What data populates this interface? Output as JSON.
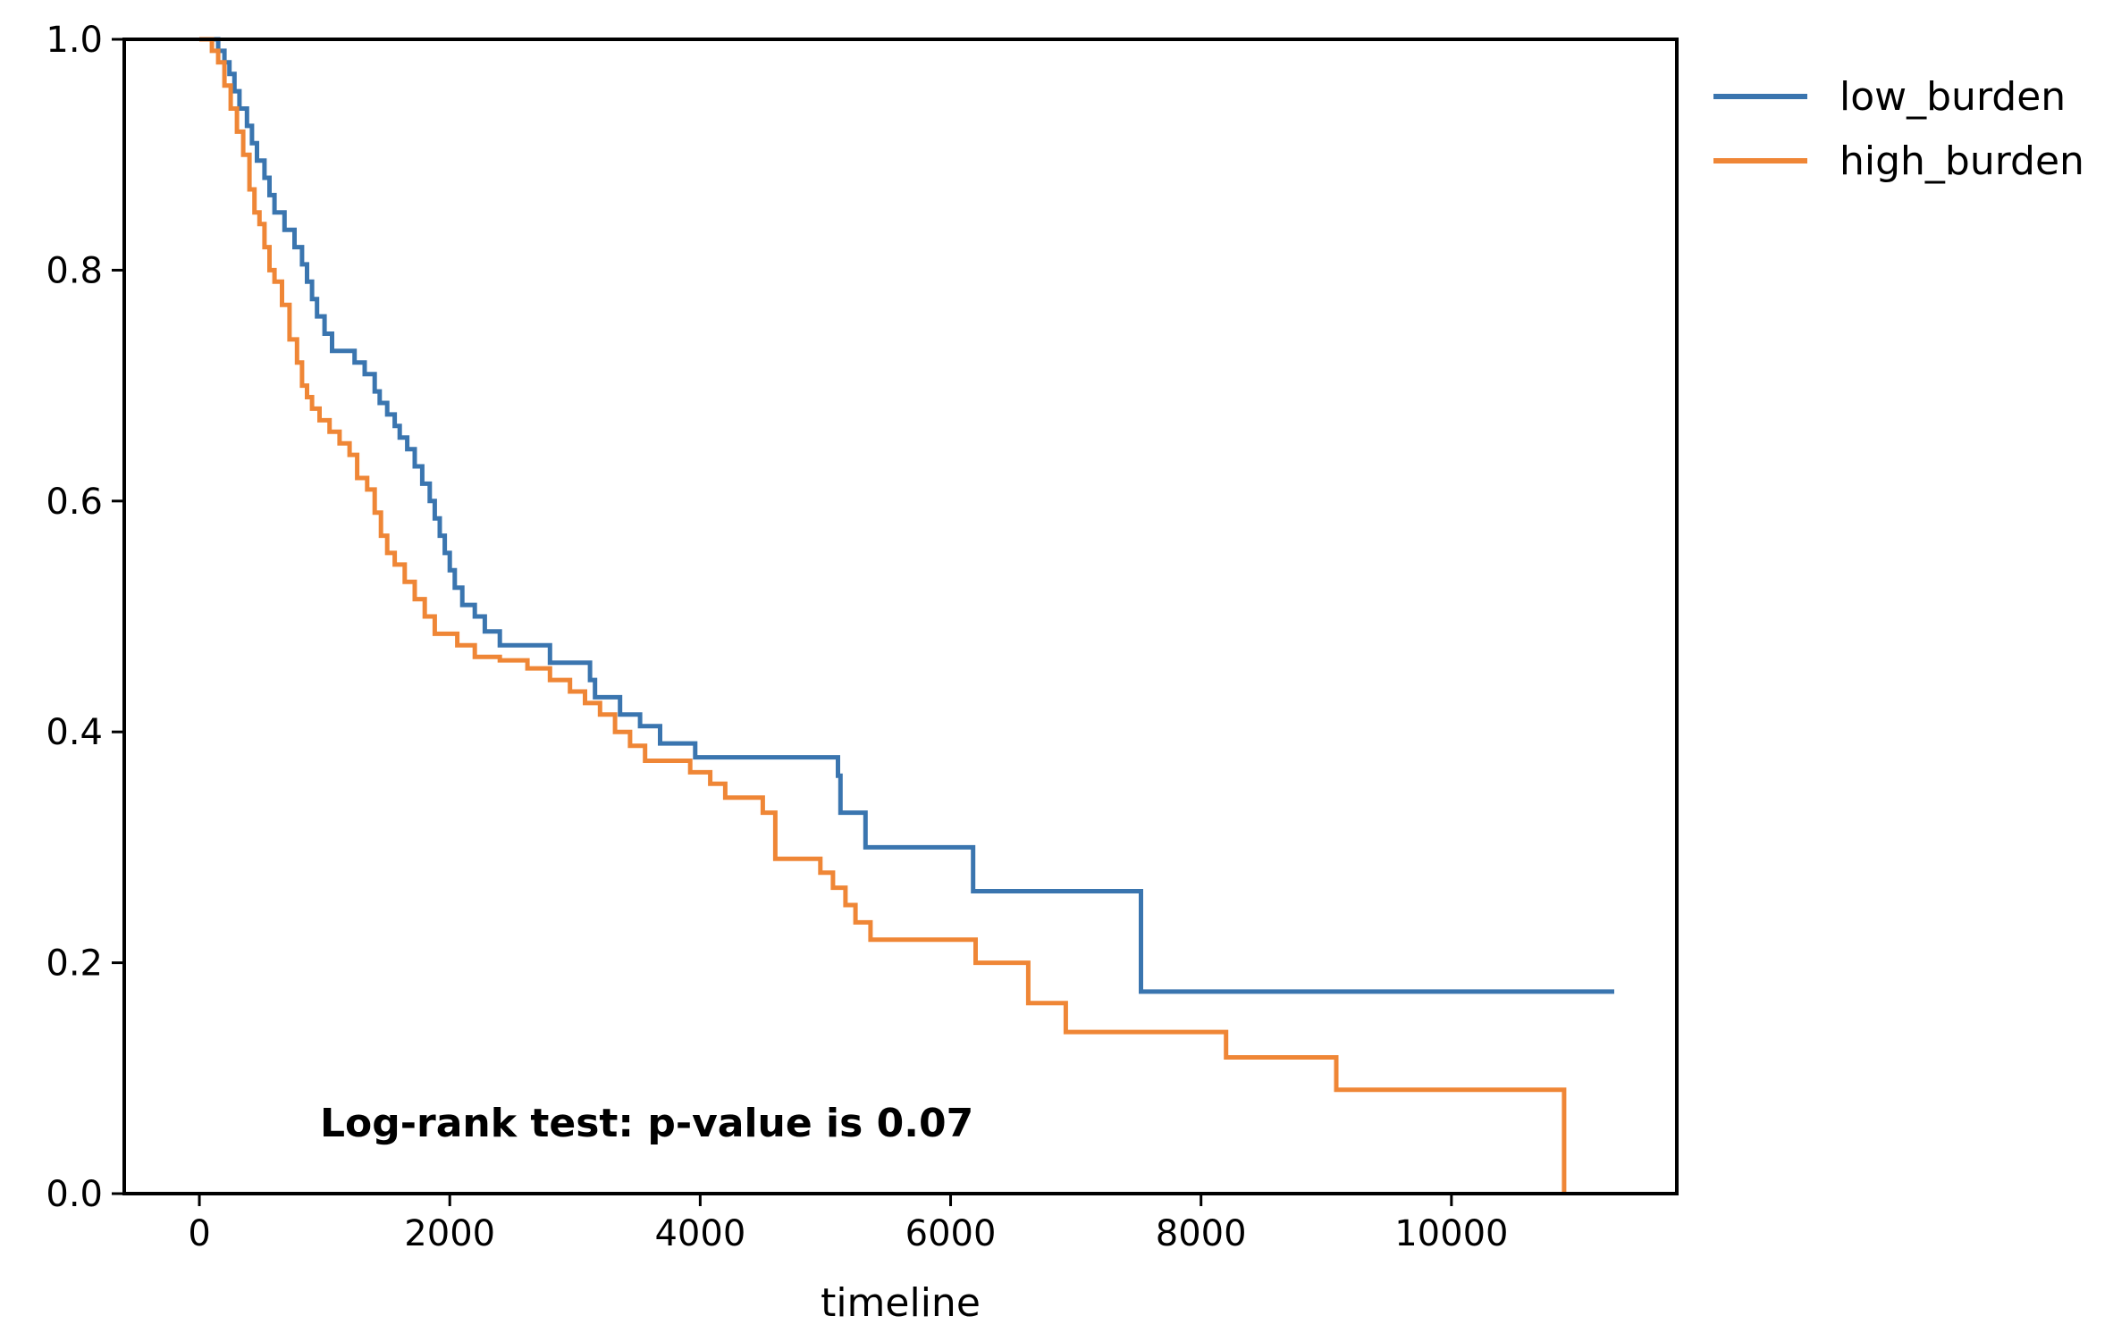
{
  "chart_data": {
    "type": "line",
    "xlabel": "timeline",
    "ylabel": "",
    "xlim": [
      -600,
      11800
    ],
    "ylim": [
      0,
      1.0
    ],
    "x_ticks": [
      0,
      2000,
      4000,
      6000,
      8000,
      10000
    ],
    "x_tick_labels": [
      "0",
      "2000",
      "4000",
      "6000",
      "8000",
      "10000"
    ],
    "y_ticks": [
      0.0,
      0.2,
      0.4,
      0.6,
      0.8,
      1.0
    ],
    "y_tick_labels": [
      "0.0",
      "0.2",
      "0.4",
      "0.6",
      "0.8",
      "1.0"
    ],
    "grid": false,
    "legend_position": "outside-top-right",
    "annotation": "Log-rank test: p-value is 0.07",
    "series": [
      {
        "name": "low_burden",
        "color": "#3a75af",
        "step": true,
        "x": [
          0,
          150,
          200,
          240,
          280,
          320,
          380,
          420,
          460,
          520,
          560,
          600,
          680,
          760,
          820,
          860,
          900,
          940,
          1000,
          1060,
          1100,
          1240,
          1320,
          1400,
          1440,
          1500,
          1560,
          1600,
          1660,
          1720,
          1780,
          1840,
          1880,
          1920,
          1960,
          2000,
          2040,
          2100,
          2200,
          2280,
          2400,
          2560,
          2800,
          3120,
          3160,
          3360,
          3520,
          3680,
          3960,
          4020,
          5100,
          5120,
          5320,
          6180,
          7520,
          11300
        ],
        "y": [
          1.0,
          0.99,
          0.98,
          0.97,
          0.955,
          0.94,
          0.925,
          0.91,
          0.895,
          0.88,
          0.865,
          0.85,
          0.835,
          0.82,
          0.805,
          0.79,
          0.775,
          0.76,
          0.745,
          0.73,
          0.73,
          0.72,
          0.71,
          0.695,
          0.685,
          0.675,
          0.665,
          0.655,
          0.645,
          0.63,
          0.615,
          0.6,
          0.585,
          0.57,
          0.555,
          0.54,
          0.525,
          0.51,
          0.5,
          0.487,
          0.475,
          0.475,
          0.46,
          0.445,
          0.43,
          0.415,
          0.405,
          0.39,
          0.378,
          0.378,
          0.362,
          0.33,
          0.3,
          0.262,
          0.175,
          0.175
        ]
      },
      {
        "name": "high_burden",
        "color": "#ef8636",
        "step": true,
        "x": [
          0,
          100,
          150,
          200,
          250,
          300,
          350,
          400,
          440,
          480,
          520,
          560,
          600,
          660,
          720,
          780,
          820,
          860,
          900,
          960,
          1040,
          1120,
          1200,
          1260,
          1340,
          1400,
          1450,
          1500,
          1560,
          1640,
          1720,
          1800,
          1880,
          1960,
          2060,
          2200,
          2400,
          2620,
          2800,
          2960,
          3080,
          3200,
          3320,
          3440,
          3560,
          3620,
          3920,
          4080,
          4200,
          4460,
          4500,
          4600,
          4860,
          4960,
          5060,
          5160,
          5240,
          5360,
          6200,
          6620,
          6920,
          8200,
          9080,
          10900
        ],
        "y": [
          1.0,
          0.99,
          0.98,
          0.96,
          0.94,
          0.92,
          0.9,
          0.87,
          0.85,
          0.84,
          0.82,
          0.8,
          0.79,
          0.77,
          0.74,
          0.72,
          0.7,
          0.69,
          0.68,
          0.67,
          0.66,
          0.65,
          0.64,
          0.62,
          0.61,
          0.59,
          0.57,
          0.555,
          0.545,
          0.53,
          0.515,
          0.5,
          0.485,
          0.485,
          0.475,
          0.465,
          0.462,
          0.455,
          0.445,
          0.435,
          0.425,
          0.415,
          0.4,
          0.388,
          0.375,
          0.375,
          0.365,
          0.355,
          0.343,
          0.343,
          0.33,
          0.29,
          0.29,
          0.278,
          0.265,
          0.25,
          0.235,
          0.22,
          0.2,
          0.165,
          0.14,
          0.118,
          0.09,
          0.06
        ]
      }
    ],
    "final_drop": {
      "series": "high_burden",
      "x": 10900,
      "y": 0.0
    }
  }
}
